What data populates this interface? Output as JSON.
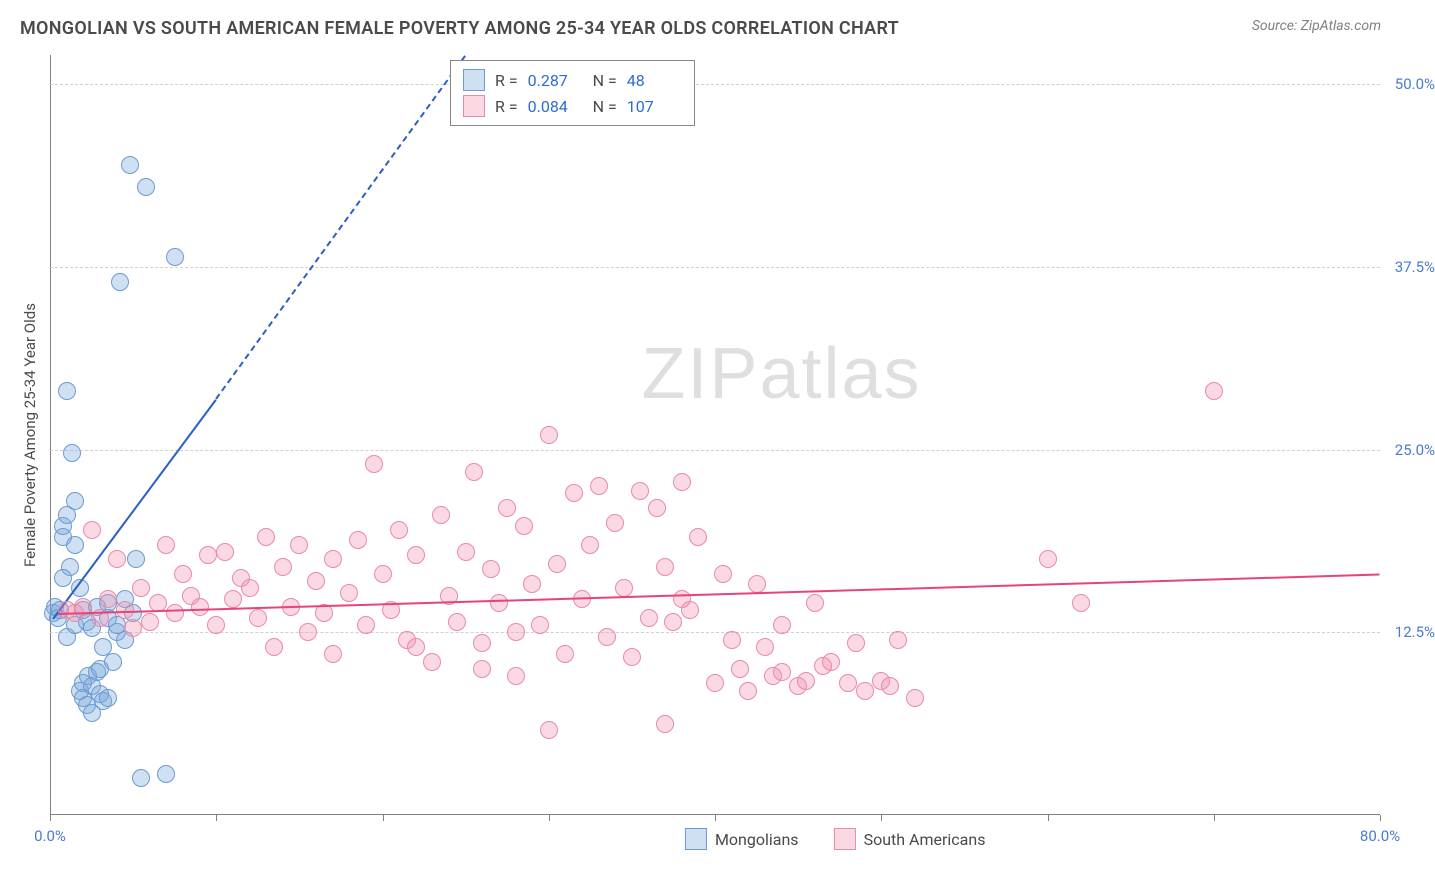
{
  "header": {
    "title": "MONGOLIAN VS SOUTH AMERICAN FEMALE POVERTY AMONG 25-34 YEAR OLDS CORRELATION CHART",
    "source_prefix": "Source: ",
    "source_name": "ZipAtlas.com"
  },
  "watermark": {
    "zip": "ZIP",
    "atlas": "atlas"
  },
  "chart": {
    "type": "scatter",
    "y_label": "Female Poverty Among 25-34 Year Olds",
    "xlim": [
      0,
      80
    ],
    "ylim": [
      0,
      52
    ],
    "x_ticks": [
      0,
      10,
      20,
      30,
      40,
      50,
      60,
      70,
      80
    ],
    "x_tick_labels": {
      "0": "0.0%",
      "80": "80.0%"
    },
    "y_ticks": [
      12.5,
      25.0,
      37.5,
      50.0
    ],
    "y_tick_labels": [
      "12.5%",
      "25.0%",
      "37.5%",
      "50.0%"
    ],
    "background_color": "#ffffff",
    "grid_color": "#d0d0d0",
    "axis_color": "#808080",
    "tick_label_color": "#4a7bd0",
    "point_radius": 9,
    "series": [
      {
        "name": "Mongolians",
        "color_fill": "rgba(120,165,220,0.35)",
        "color_stroke": "#6b9bd2",
        "trend_color": "#2b5fc4",
        "R": "0.287",
        "N": "48",
        "trend_solid": {
          "x1": 0.2,
          "y1": 13.5,
          "x2": 10,
          "y2": 28.5
        },
        "trend_dash": {
          "x1": 10,
          "y1": 28.5,
          "x2": 25,
          "y2": 52
        },
        "points": [
          [
            0.2,
            13.8
          ],
          [
            0.3,
            14.2
          ],
          [
            0.5,
            13.5
          ],
          [
            0.6,
            14.0
          ],
          [
            0.8,
            19.0
          ],
          [
            0.8,
            19.8
          ],
          [
            1.0,
            20.5
          ],
          [
            1.0,
            12.2
          ],
          [
            1.3,
            24.8
          ],
          [
            1.5,
            13.0
          ],
          [
            1.8,
            8.5
          ],
          [
            2.0,
            9.0
          ],
          [
            2.0,
            8.0
          ],
          [
            2.2,
            7.5
          ],
          [
            2.3,
            9.5
          ],
          [
            2.5,
            8.8
          ],
          [
            2.5,
            7.0
          ],
          [
            2.8,
            9.8
          ],
          [
            3.0,
            8.3
          ],
          [
            3.0,
            10.0
          ],
          [
            3.2,
            7.8
          ],
          [
            3.2,
            11.5
          ],
          [
            3.5,
            8.0
          ],
          [
            3.5,
            14.5
          ],
          [
            3.8,
            10.5
          ],
          [
            4.0,
            12.5
          ],
          [
            4.2,
            36.5
          ],
          [
            4.5,
            14.8
          ],
          [
            4.8,
            44.5
          ],
          [
            5.2,
            17.5
          ],
          [
            5.5,
            2.5
          ],
          [
            5.8,
            43.0
          ],
          [
            7.0,
            2.8
          ],
          [
            7.5,
            38.2
          ],
          [
            1.0,
            29.0
          ],
          [
            1.2,
            17.0
          ],
          [
            1.5,
            18.5
          ],
          [
            1.8,
            15.5
          ],
          [
            2.0,
            14.0
          ],
          [
            2.2,
            13.2
          ],
          [
            2.5,
            12.8
          ],
          [
            2.8,
            14.2
          ],
          [
            3.5,
            13.5
          ],
          [
            4.0,
            13.0
          ],
          [
            4.5,
            12.0
          ],
          [
            5.0,
            13.8
          ],
          [
            0.8,
            16.2
          ],
          [
            1.5,
            21.5
          ]
        ]
      },
      {
        "name": "South Americans",
        "color_fill": "rgba(240,145,175,0.35)",
        "color_stroke": "#e88aac",
        "trend_color": "#e6447a",
        "R": "0.084",
        "N": "107",
        "trend_solid": {
          "x1": 0.5,
          "y1": 13.8,
          "x2": 80,
          "y2": 16.5
        },
        "points": [
          [
            1.0,
            14.0
          ],
          [
            1.5,
            13.8
          ],
          [
            2.0,
            14.2
          ],
          [
            2.5,
            19.5
          ],
          [
            3.0,
            13.5
          ],
          [
            3.5,
            14.8
          ],
          [
            4.0,
            17.5
          ],
          [
            4.5,
            14.0
          ],
          [
            5.0,
            12.8
          ],
          [
            5.5,
            15.5
          ],
          [
            6.0,
            13.2
          ],
          [
            6.5,
            14.5
          ],
          [
            7.0,
            18.5
          ],
          [
            7.5,
            13.8
          ],
          [
            8.0,
            16.5
          ],
          [
            8.5,
            15.0
          ],
          [
            9.0,
            14.2
          ],
          [
            9.5,
            17.8
          ],
          [
            10.0,
            13.0
          ],
          [
            10.5,
            18.0
          ],
          [
            11.0,
            14.8
          ],
          [
            11.5,
            16.2
          ],
          [
            12.0,
            15.5
          ],
          [
            12.5,
            13.5
          ],
          [
            13.0,
            19.0
          ],
          [
            13.5,
            11.5
          ],
          [
            14.0,
            17.0
          ],
          [
            14.5,
            14.2
          ],
          [
            15.0,
            18.5
          ],
          [
            15.5,
            12.5
          ],
          [
            16.0,
            16.0
          ],
          [
            16.5,
            13.8
          ],
          [
            17.0,
            17.5
          ],
          [
            17.0,
            11.0
          ],
          [
            18.0,
            15.2
          ],
          [
            18.5,
            18.8
          ],
          [
            19.0,
            13.0
          ],
          [
            19.5,
            24.0
          ],
          [
            20.0,
            16.5
          ],
          [
            20.5,
            14.0
          ],
          [
            21.0,
            19.5
          ],
          [
            21.5,
            12.0
          ],
          [
            22.0,
            17.8
          ],
          [
            22.0,
            11.5
          ],
          [
            23.0,
            10.5
          ],
          [
            23.5,
            20.5
          ],
          [
            24.0,
            15.0
          ],
          [
            24.5,
            13.2
          ],
          [
            25.0,
            18.0
          ],
          [
            25.5,
            23.5
          ],
          [
            26.0,
            11.8
          ],
          [
            26.5,
            16.8
          ],
          [
            27.0,
            14.5
          ],
          [
            27.5,
            21.0
          ],
          [
            28.0,
            12.5
          ],
          [
            28.5,
            19.8
          ],
          [
            29.0,
            15.8
          ],
          [
            29.5,
            13.0
          ],
          [
            30.0,
            26.0
          ],
          [
            30.5,
            17.2
          ],
          [
            31.0,
            11.0
          ],
          [
            31.5,
            22.0
          ],
          [
            32.0,
            14.8
          ],
          [
            32.5,
            18.5
          ],
          [
            33.0,
            22.5
          ],
          [
            33.5,
            12.2
          ],
          [
            34.0,
            20.0
          ],
          [
            34.5,
            15.5
          ],
          [
            35.0,
            10.8
          ],
          [
            35.5,
            22.2
          ],
          [
            36.0,
            13.5
          ],
          [
            36.5,
            21.0
          ],
          [
            37.0,
            6.2
          ],
          [
            37.0,
            17.0
          ],
          [
            38.0,
            22.8
          ],
          [
            38.5,
            14.0
          ],
          [
            39.0,
            19.0
          ],
          [
            40.0,
            9.0
          ],
          [
            40.5,
            16.5
          ],
          [
            41.0,
            12.0
          ],
          [
            41.5,
            10.0
          ],
          [
            42.0,
            8.5
          ],
          [
            42.5,
            15.8
          ],
          [
            43.0,
            11.5
          ],
          [
            43.5,
            9.5
          ],
          [
            44.0,
            13.0
          ],
          [
            45.0,
            8.8
          ],
          [
            45.5,
            9.2
          ],
          [
            46.0,
            14.5
          ],
          [
            47.0,
            10.5
          ],
          [
            48.0,
            9.0
          ],
          [
            48.5,
            11.8
          ],
          [
            49.0,
            8.5
          ],
          [
            50.0,
            9.2
          ],
          [
            50.5,
            8.8
          ],
          [
            51.0,
            12.0
          ],
          [
            52.0,
            8.0
          ],
          [
            37.5,
            13.2
          ],
          [
            38.0,
            14.8
          ],
          [
            60.0,
            17.5
          ],
          [
            62.0,
            14.5
          ],
          [
            70.0,
            29.0
          ],
          [
            30.0,
            5.8
          ],
          [
            26.0,
            10.0
          ],
          [
            28.0,
            9.5
          ],
          [
            44.0,
            9.8
          ],
          [
            46.5,
            10.2
          ]
        ]
      }
    ]
  },
  "stats_box": {
    "r_label": "R =",
    "n_label": "N ="
  },
  "legend": {
    "items": [
      "Mongolians",
      "South Americans"
    ]
  }
}
